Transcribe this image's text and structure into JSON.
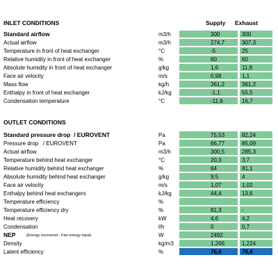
{
  "columns": [
    "Supply",
    "Exhaust"
  ],
  "inlet": {
    "title": "INLET CONDITIONS",
    "rows": [
      {
        "label": "Standard airflow",
        "bold": true,
        "unit": "m3/h",
        "supply": "300",
        "exhaust": "300"
      },
      {
        "label": "Actual airflow",
        "unit": "m3/h",
        "supply": "274,7",
        "exhaust": "307,3"
      },
      {
        "label": "Temperature in front of heat exchanger",
        "unit": "°C",
        "supply": "-5",
        "exhaust": "25"
      },
      {
        "label": "Relative humidity in front of heat exchanger",
        "unit": "%",
        "supply": "60",
        "exhaust": "60"
      },
      {
        "label": "Absolute humidity in front of heat exchanger",
        "unit": "g/kg",
        "supply": "1,6",
        "exhaust": "11,9"
      },
      {
        "label": "Face air velocity",
        "unit": "m/s",
        "supply": "0,98",
        "exhaust": "1,1"
      },
      {
        "label": "Mass flow",
        "unit": "kg/h",
        "supply": "361,2",
        "exhaust": "361,2"
      },
      {
        "label": "Enthalpy in front of heat exchanger",
        "unit": "kJ/kg",
        "supply": "-1,1",
        "exhaust": "55,5"
      },
      {
        "label": "Condensation temperature",
        "unit": "°C",
        "supply": "-11,6",
        "exhaust": "16,7"
      }
    ]
  },
  "outlet": {
    "title": "OUTLET CONDITIONS",
    "rows": [
      {
        "label": "Standard pressure drop  / EUROVENT",
        "bold": true,
        "unit": "Pa",
        "supply": "75,53",
        "exhaust": "82,24"
      },
      {
        "label": "Pressure drop   / EUROVENT",
        "unit": "Pa",
        "supply": "66,77",
        "exhaust": "85,09"
      },
      {
        "label": "Actual airflow",
        "unit": "m3/h",
        "supply": "300,5",
        "exhaust": "285,3"
      },
      {
        "label": "Temperature behind heat exchanger",
        "unit": "°C",
        "supply": "20,3",
        "exhaust": "3,7"
      },
      {
        "label": "Relative humidity behind heat exchanger",
        "unit": "%",
        "supply": "64",
        "exhaust": "81,1"
      },
      {
        "label": "Absolute humidity behind heat exchanger",
        "unit": "g/kg",
        "supply": "9,5",
        "exhaust": "4"
      },
      {
        "label": "Face air velocity",
        "unit": "m/s",
        "supply": "1,07",
        "exhaust": "1,02"
      },
      {
        "label": "Enthalpy behind heat exchangers",
        "unit": "kJ/kg",
        "supply": "44,4",
        "exhaust": "13,6"
      },
      {
        "label": "Temperature efficiency",
        "unit": "%",
        "supply": null,
        "exhaust": null
      },
      {
        "label": "Temperature efficiency dry",
        "unit": "%",
        "supply": "81,3",
        "exhaust": "-"
      },
      {
        "label": "Heat recovery",
        "unit": "kW",
        "supply": "4,6",
        "exhaust": "4,2"
      },
      {
        "label": "Condensation",
        "unit": "l/h",
        "supply": "0",
        "exhaust": "0,7"
      },
      {
        "label": "NEP",
        "bold": true,
        "note": "(Energy recovered - Fan energy input)",
        "unit": "W",
        "supply": "2492",
        "exhaust": null
      },
      {
        "label": "Density",
        "unit": "kg/m3",
        "supply": "1,266",
        "exhaust": "1,224"
      },
      {
        "label": "Latent efficiency",
        "unit": "%",
        "supply": "76,6",
        "exhaust": "76,6",
        "highlight": "blue"
      }
    ]
  }
}
